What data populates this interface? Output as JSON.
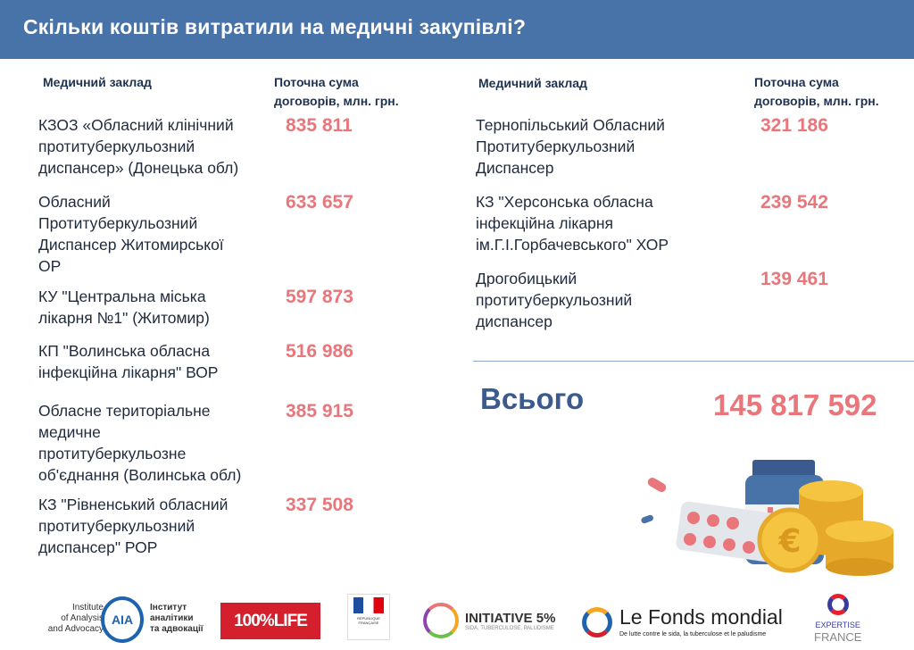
{
  "header": {
    "title": "Скільки коштів витратили на медичні закупівлі?"
  },
  "columns": {
    "facility": "Медичний заклад",
    "sum_line1": "Поточна сума",
    "sum_line2": "договорів, млн. грн."
  },
  "left_rows": [
    {
      "name": [
        "КЗОЗ «Обласний клінічний",
        "протитуберкульозний",
        "диспансер» (Донецька обл)"
      ],
      "value": "835 811"
    },
    {
      "name": [
        "Обласний",
        "Протитуберкульозний",
        "Диспансер Житомирської",
        "ОР"
      ],
      "value": "633 657"
    },
    {
      "name": [
        "КУ \"Центральна міська",
        "лікарня №1\" (Житомир)"
      ],
      "value": "597 873"
    },
    {
      "name": [
        "КП \"Волинська обласна",
        "інфекційна лікарня\" ВОР"
      ],
      "value": "516 986"
    },
    {
      "name": [
        "Обласне територіальне",
        "медичне",
        "протитуберкульозне",
        "об'єднання (Волинська обл)"
      ],
      "value": "385 915"
    },
    {
      "name": [
        "КЗ \"Рівненський обласний",
        "протитуберкульозний",
        "диспансер\" РОР"
      ],
      "value": "337 508"
    }
  ],
  "right_rows": [
    {
      "name": [
        "Тернопільський Обласний",
        "Протитуберкульозний",
        "Диспансер"
      ],
      "value": "321 186"
    },
    {
      "name": [
        "КЗ \"Херсонська обласна",
        "інфекційна лікарня",
        "ім.Г.І.Горбачевського\" ХОР"
      ],
      "value": "239 542"
    },
    {
      "name": [
        "Дрогобицький",
        "протитуберкульозний",
        "диспансер"
      ],
      "value": "139 461"
    }
  ],
  "total": {
    "label": "Всього",
    "value": "145 817 592"
  },
  "logos": {
    "iaa": {
      "en": [
        "Institute",
        "of Analysis",
        "and Advocacy"
      ],
      "mark": "AIA",
      "ua": [
        "Інститут",
        "аналітики",
        "та адвокації"
      ]
    },
    "life": "100%LIFE",
    "france": "RÉPUBLIQUE FRANÇAISE",
    "initiative": {
      "name": "INITIATIVE 5%",
      "sub": "SIDA, TUBERCULOSE, PALUDISME"
    },
    "fonds": {
      "name": "Le Fonds mondial",
      "sub": "De lutte contre le sida, la tuberculose et le paludisme"
    },
    "expertise": [
      "EXPERTISE",
      "FRANCE"
    ]
  },
  "colors": {
    "header": "#4873a8",
    "number": "#e8767b",
    "total_label": "#3b5b8e"
  }
}
